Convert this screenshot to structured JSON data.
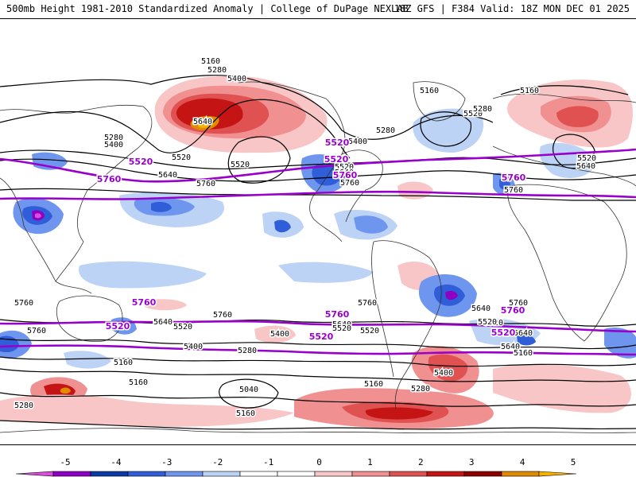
{
  "header": {
    "title_left": "500mb Height 1981-2010 Standardized Anomaly | College of DuPage NEXLAB",
    "title_right": "18Z GFS | F384 Valid: 18Z MON DEC 01 2025"
  },
  "colors": {
    "purple": "#9900cc",
    "contour": "#000000",
    "coast": "#333333"
  },
  "anomaly_scale": {
    "ticks": [
      "-5",
      "-4",
      "-3",
      "-2",
      "-1",
      "0",
      "1",
      "2",
      "3",
      "4",
      "5"
    ],
    "colors": [
      "#d94fd9",
      "#8f00c4",
      "#0a3aa3",
      "#2f5ed8",
      "#6f96ee",
      "#bcd3f6",
      "#ffffff",
      "#ffffff",
      "#f8c6c6",
      "#f19090",
      "#e05252",
      "#c41414",
      "#8e0000",
      "#e08a00",
      "#f7b200"
    ]
  },
  "contour_labels": [
    {
      "text": "5160"
    },
    {
      "text": "5280"
    },
    {
      "text": "5400"
    },
    {
      "text": "5640"
    },
    {
      "text": "5280"
    },
    {
      "text": "5400"
    },
    {
      "text": "5520"
    },
    {
      "text": "5520"
    },
    {
      "text": "5640"
    },
    {
      "text": "5760"
    },
    {
      "text": "5760"
    },
    {
      "text": "5160"
    },
    {
      "text": "5280"
    },
    {
      "text": "5400"
    },
    {
      "text": "5520"
    },
    {
      "text": "5760"
    },
    {
      "text": "5160"
    },
    {
      "text": "5280"
    },
    {
      "text": "5520"
    },
    {
      "text": "5640"
    },
    {
      "text": "5520"
    },
    {
      "text": "5640"
    },
    {
      "text": "5760"
    },
    {
      "text": "5760"
    },
    {
      "text": "5400"
    },
    {
      "text": "5760"
    },
    {
      "text": "5640"
    },
    {
      "text": "5520"
    },
    {
      "text": "5640"
    },
    {
      "text": "5520"
    },
    {
      "text": "5400"
    },
    {
      "text": "5280"
    },
    {
      "text": "5760"
    },
    {
      "text": "5640"
    },
    {
      "text": "5520"
    },
    {
      "text": "5760"
    },
    {
      "text": "5640"
    },
    {
      "text": "5520"
    },
    {
      "text": "5400"
    },
    {
      "text": "5160"
    },
    {
      "text": "5160"
    },
    {
      "text": "5040"
    },
    {
      "text": "5160"
    },
    {
      "text": "5160"
    },
    {
      "text": "5280"
    },
    {
      "text": "5280"
    },
    {
      "text": "5640"
    },
    {
      "text": "5520"
    },
    {
      "text": "5160"
    }
  ],
  "purple_labels": [
    {
      "text": "5520"
    },
    {
      "text": "5760"
    },
    {
      "text": "5520"
    },
    {
      "text": "5760"
    },
    {
      "text": "5520"
    },
    {
      "text": "5760"
    },
    {
      "text": "5760"
    },
    {
      "text": "5760"
    },
    {
      "text": "5760"
    },
    {
      "text": "5520"
    },
    {
      "text": "5520"
    },
    {
      "text": "5520"
    }
  ]
}
